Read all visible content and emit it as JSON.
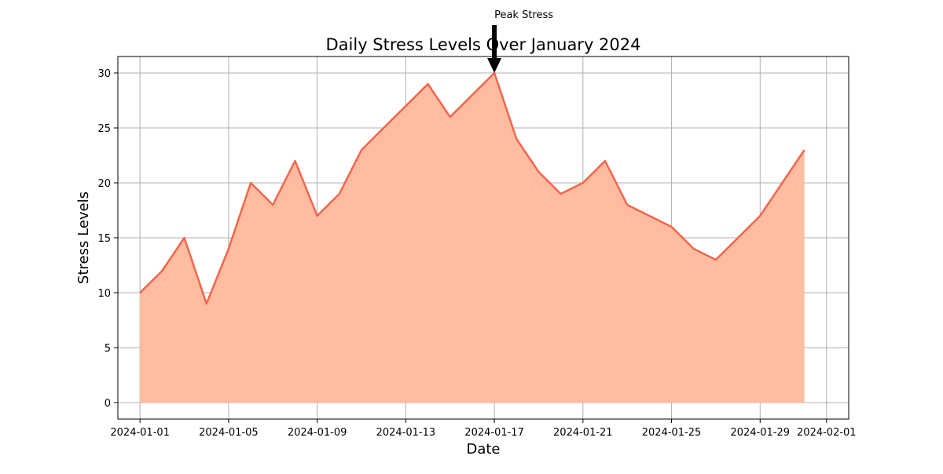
{
  "chart_data": {
    "type": "area",
    "title": "Daily Stress Levels Over January 2024",
    "xlabel": "Date",
    "ylabel": "Stress Levels",
    "x": [
      "2024-01-01",
      "2024-01-02",
      "2024-01-03",
      "2024-01-04",
      "2024-01-05",
      "2024-01-06",
      "2024-01-07",
      "2024-01-08",
      "2024-01-09",
      "2024-01-10",
      "2024-01-11",
      "2024-01-12",
      "2024-01-13",
      "2024-01-14",
      "2024-01-15",
      "2024-01-16",
      "2024-01-17",
      "2024-01-18",
      "2024-01-19",
      "2024-01-20",
      "2024-01-21",
      "2024-01-22",
      "2024-01-23",
      "2024-01-24",
      "2024-01-25",
      "2024-01-26",
      "2024-01-27",
      "2024-01-28",
      "2024-01-29",
      "2024-01-30",
      "2024-01-31"
    ],
    "series": [
      {
        "values": [
          10,
          12,
          15,
          9,
          14,
          20,
          18,
          22,
          17,
          19,
          23,
          25,
          27,
          29,
          26,
          28,
          30,
          24,
          21,
          19,
          20,
          22,
          18,
          17,
          16,
          14,
          13,
          15,
          17,
          20,
          23
        ],
        "line_color": "#f4664a",
        "fill_color": "#ffbca0"
      }
    ],
    "xticks": [
      "2024-01-01",
      "2024-01-05",
      "2024-01-09",
      "2024-01-13",
      "2024-01-17",
      "2024-01-21",
      "2024-01-25",
      "2024-01-29",
      "2024-02-01"
    ],
    "yticks": [
      0,
      5,
      10,
      15,
      20,
      25,
      30
    ],
    "xlim": [
      "2023-12-31",
      "2024-02-02"
    ],
    "ylim": [
      -1.5,
      31.5
    ],
    "grid": true,
    "annotation": {
      "text": "Peak Stress",
      "x": "2024-01-17",
      "y": 30,
      "arrow_color": "#000000"
    }
  }
}
